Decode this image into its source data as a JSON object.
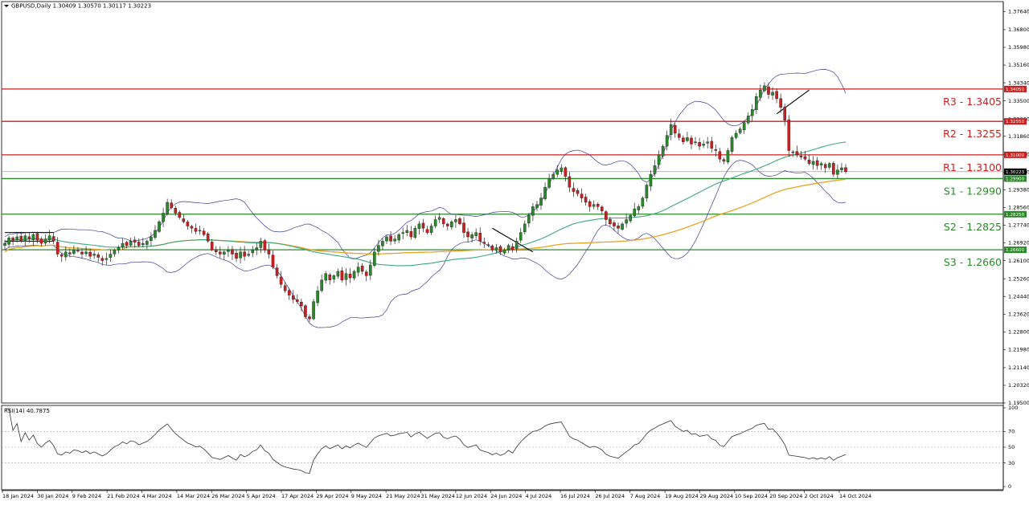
{
  "header": {
    "title": "GBPUSD,Daily  1.30409 1.30570 1.30117 1.30223",
    "rsi_title": "RSI(14) 40.7875"
  },
  "colors": {
    "bull": "#2a8a2a",
    "bear": "#cc1f1f",
    "ma_fast": "#3aa87a",
    "ma_slow": "#e8a323",
    "bands": "#3d3d8f",
    "resistance": "#cc1f1f",
    "support": "#2a8a2a",
    "rsi": "#333333"
  },
  "chart_data": [
    {
      "type": "candlestick",
      "symbol": "GBPUSD",
      "timeframe": "Daily",
      "ohlc_last": {
        "open": 1.30409,
        "high": 1.3057,
        "low": 1.30117,
        "close": 1.30223
      },
      "ylim": [
        1.195,
        1.381
      ],
      "y_ticks": [
        "1.37640",
        "1.36800",
        "1.35980",
        "1.35160",
        "1.34340",
        "1.33500",
        "1.32660",
        "1.31860",
        "1.31020",
        "1.30200",
        "1.29380",
        "1.28560",
        "1.27740",
        "1.26920",
        "1.26100",
        "1.25260",
        "1.24440",
        "1.23620",
        "1.22800",
        "1.21980",
        "1.21140",
        "1.20320",
        "1.19500"
      ],
      "x_ticks": [
        "18 Jan 2024",
        "30 Jan 2024",
        "9 Feb 2024",
        "21 Feb 2024",
        "4 Mar 2024",
        "14 Mar 2024",
        "26 Mar 2024",
        "5 Apr 2024",
        "17 Apr 2024",
        "29 Apr 2024",
        "9 May 2024",
        "21 May 2024",
        "31 May 2024",
        "12 Jun 2024",
        "24 Jun 2024",
        "4 Jul 2024",
        "16 Jul 2024",
        "26 Jul 2024",
        "7 Aug 2024",
        "19 Aug 2024",
        "29 Aug 2024",
        "10 Sep 2024",
        "20 Sep 2024",
        "2 Oct 2024",
        "14 Oct 2024"
      ],
      "current_price": {
        "value": 1.3022,
        "label": "1.30223"
      },
      "levels": [
        {
          "name": "R3",
          "value": 1.3405,
          "label": "R3 - 1.3405",
          "tag": "1.34050",
          "kind": "resistance"
        },
        {
          "name": "R2",
          "value": 1.3255,
          "label": "R2 - 1.3255",
          "tag": "1.32550",
          "kind": "resistance"
        },
        {
          "name": "R1",
          "value": 1.31,
          "label": "R1 - 1.3100",
          "tag": "1.31000",
          "kind": "resistance"
        },
        {
          "name": "S1",
          "value": 1.299,
          "label": "S1 - 1.2990",
          "tag": "1.29900",
          "kind": "support"
        },
        {
          "name": "S2",
          "value": 1.2825,
          "label": "S2 - 1.2825",
          "tag": "1.28250",
          "kind": "support"
        },
        {
          "name": "S3",
          "value": 1.266,
          "label": "S3 - 1.2660",
          "tag": "1.26600",
          "kind": "support"
        }
      ],
      "close_series": [
        1.269,
        1.2715,
        1.2705,
        1.272,
        1.27,
        1.2725,
        1.271,
        1.273,
        1.2705,
        1.269,
        1.271,
        1.2725,
        1.27,
        1.264,
        1.263,
        1.265,
        1.264,
        1.266,
        1.2655,
        1.264,
        1.265,
        1.263,
        1.264,
        1.2625,
        1.261,
        1.262,
        1.264,
        1.266,
        1.267,
        1.269,
        1.268,
        1.27,
        1.2695,
        1.268,
        1.269,
        1.27,
        1.272,
        1.275,
        1.279,
        1.283,
        1.288,
        1.2855,
        1.283,
        1.281,
        1.279,
        1.277,
        1.276,
        1.2745,
        1.275,
        1.273,
        1.27,
        1.266,
        1.265,
        1.264,
        1.265,
        1.266,
        1.264,
        1.262,
        1.265,
        1.263,
        1.264,
        1.266,
        1.267,
        1.27,
        1.266,
        1.264,
        1.258,
        1.254,
        1.25,
        1.247,
        1.245,
        1.243,
        1.242,
        1.24,
        1.235,
        1.234,
        1.242,
        1.247,
        1.252,
        1.255,
        1.252,
        1.254,
        1.256,
        1.252,
        1.255,
        1.253,
        1.256,
        1.258,
        1.256,
        1.254,
        1.259,
        1.265,
        1.268,
        1.27,
        1.272,
        1.27,
        1.271,
        1.273,
        1.274,
        1.275,
        1.272,
        1.276,
        1.278,
        1.276,
        1.274,
        1.277,
        1.28,
        1.281,
        1.278,
        1.277,
        1.279,
        1.28,
        1.278,
        1.274,
        1.272,
        1.273,
        1.274,
        1.27,
        1.269,
        1.268,
        1.266,
        1.267,
        1.265,
        1.266,
        1.268,
        1.266,
        1.27,
        1.274,
        1.278,
        1.282,
        1.286,
        1.287,
        1.29,
        1.295,
        1.299,
        1.301,
        1.303,
        1.304,
        1.3,
        1.295,
        1.293,
        1.292,
        1.29,
        1.288,
        1.286,
        1.287,
        1.286,
        1.284,
        1.28,
        1.278,
        1.277,
        1.276,
        1.278,
        1.28,
        1.282,
        1.285,
        1.286,
        1.29,
        1.296,
        1.301,
        1.305,
        1.31,
        1.314,
        1.319,
        1.324,
        1.32,
        1.318,
        1.316,
        1.318,
        1.315,
        1.316,
        1.314,
        1.315,
        1.316,
        1.313,
        1.312,
        1.308,
        1.307,
        1.312,
        1.318,
        1.32,
        1.322,
        1.325,
        1.328,
        1.331,
        1.337,
        1.34,
        1.342,
        1.338,
        1.339,
        1.336,
        1.332,
        1.326,
        1.312,
        1.311,
        1.31,
        1.309,
        1.308,
        1.306,
        1.307,
        1.305,
        1.306,
        1.304,
        1.306,
        1.301,
        1.303,
        1.304,
        1.302
      ],
      "rsi": {
        "ylim": [
          0,
          100
        ],
        "y_ticks": [
          "100",
          "70",
          "50",
          "30",
          "0"
        ],
        "levels": [
          70,
          50,
          30
        ],
        "last": 40.79
      }
    }
  ]
}
